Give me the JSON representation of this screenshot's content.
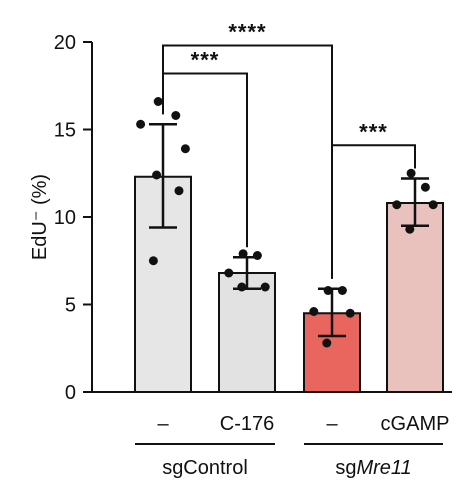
{
  "chart_data": {
    "type": "bar",
    "ylabel": "EdU⁻ (%)",
    "ylim": [
      0,
      20
    ],
    "yticks": [
      0,
      5,
      10,
      15,
      20
    ],
    "grid": false,
    "bars": [
      {
        "category": "–",
        "group": "sgControl",
        "mean": 12.3,
        "error_upper": 15.3,
        "error_lower": 9.4,
        "color": "#e6e6e6",
        "points": [
          16.6,
          15.8,
          15.3,
          13.9,
          12.4,
          11.5,
          7.5
        ]
      },
      {
        "category": "C-176",
        "group": "sgControl",
        "mean": 6.8,
        "error_upper": 7.7,
        "error_lower": 5.9,
        "color": "#e2e2e2",
        "points": [
          7.9,
          7.8,
          6.8,
          6.0,
          6.0
        ]
      },
      {
        "category": "–",
        "group": "sgMre11",
        "mean": 4.5,
        "error_upper": 5.9,
        "error_lower": 3.2,
        "color": "#e9665e",
        "points": [
          5.8,
          5.8,
          4.6,
          4.5,
          2.8
        ]
      },
      {
        "category": "cGAMP",
        "group": "sgMre11",
        "mean": 10.8,
        "error_upper": 12.2,
        "error_lower": 9.5,
        "color": "#e9c1bd",
        "points": [
          12.5,
          11.7,
          10.7,
          10.7,
          9.3
        ]
      }
    ],
    "groups": [
      {
        "label_prefix": "sgControl",
        "label_italic": "",
        "bars": [
          0,
          1
        ]
      },
      {
        "label_prefix": "sg",
        "label_italic": "Mre11",
        "bars": [
          2,
          3
        ]
      }
    ],
    "significance": [
      {
        "from": 0,
        "to": 2,
        "label": "****",
        "level": 19.8
      },
      {
        "from": 0,
        "to": 1,
        "label": "***",
        "level": 18.2
      },
      {
        "from": 2,
        "to": 3,
        "label": "***",
        "level": 14.1
      }
    ]
  }
}
